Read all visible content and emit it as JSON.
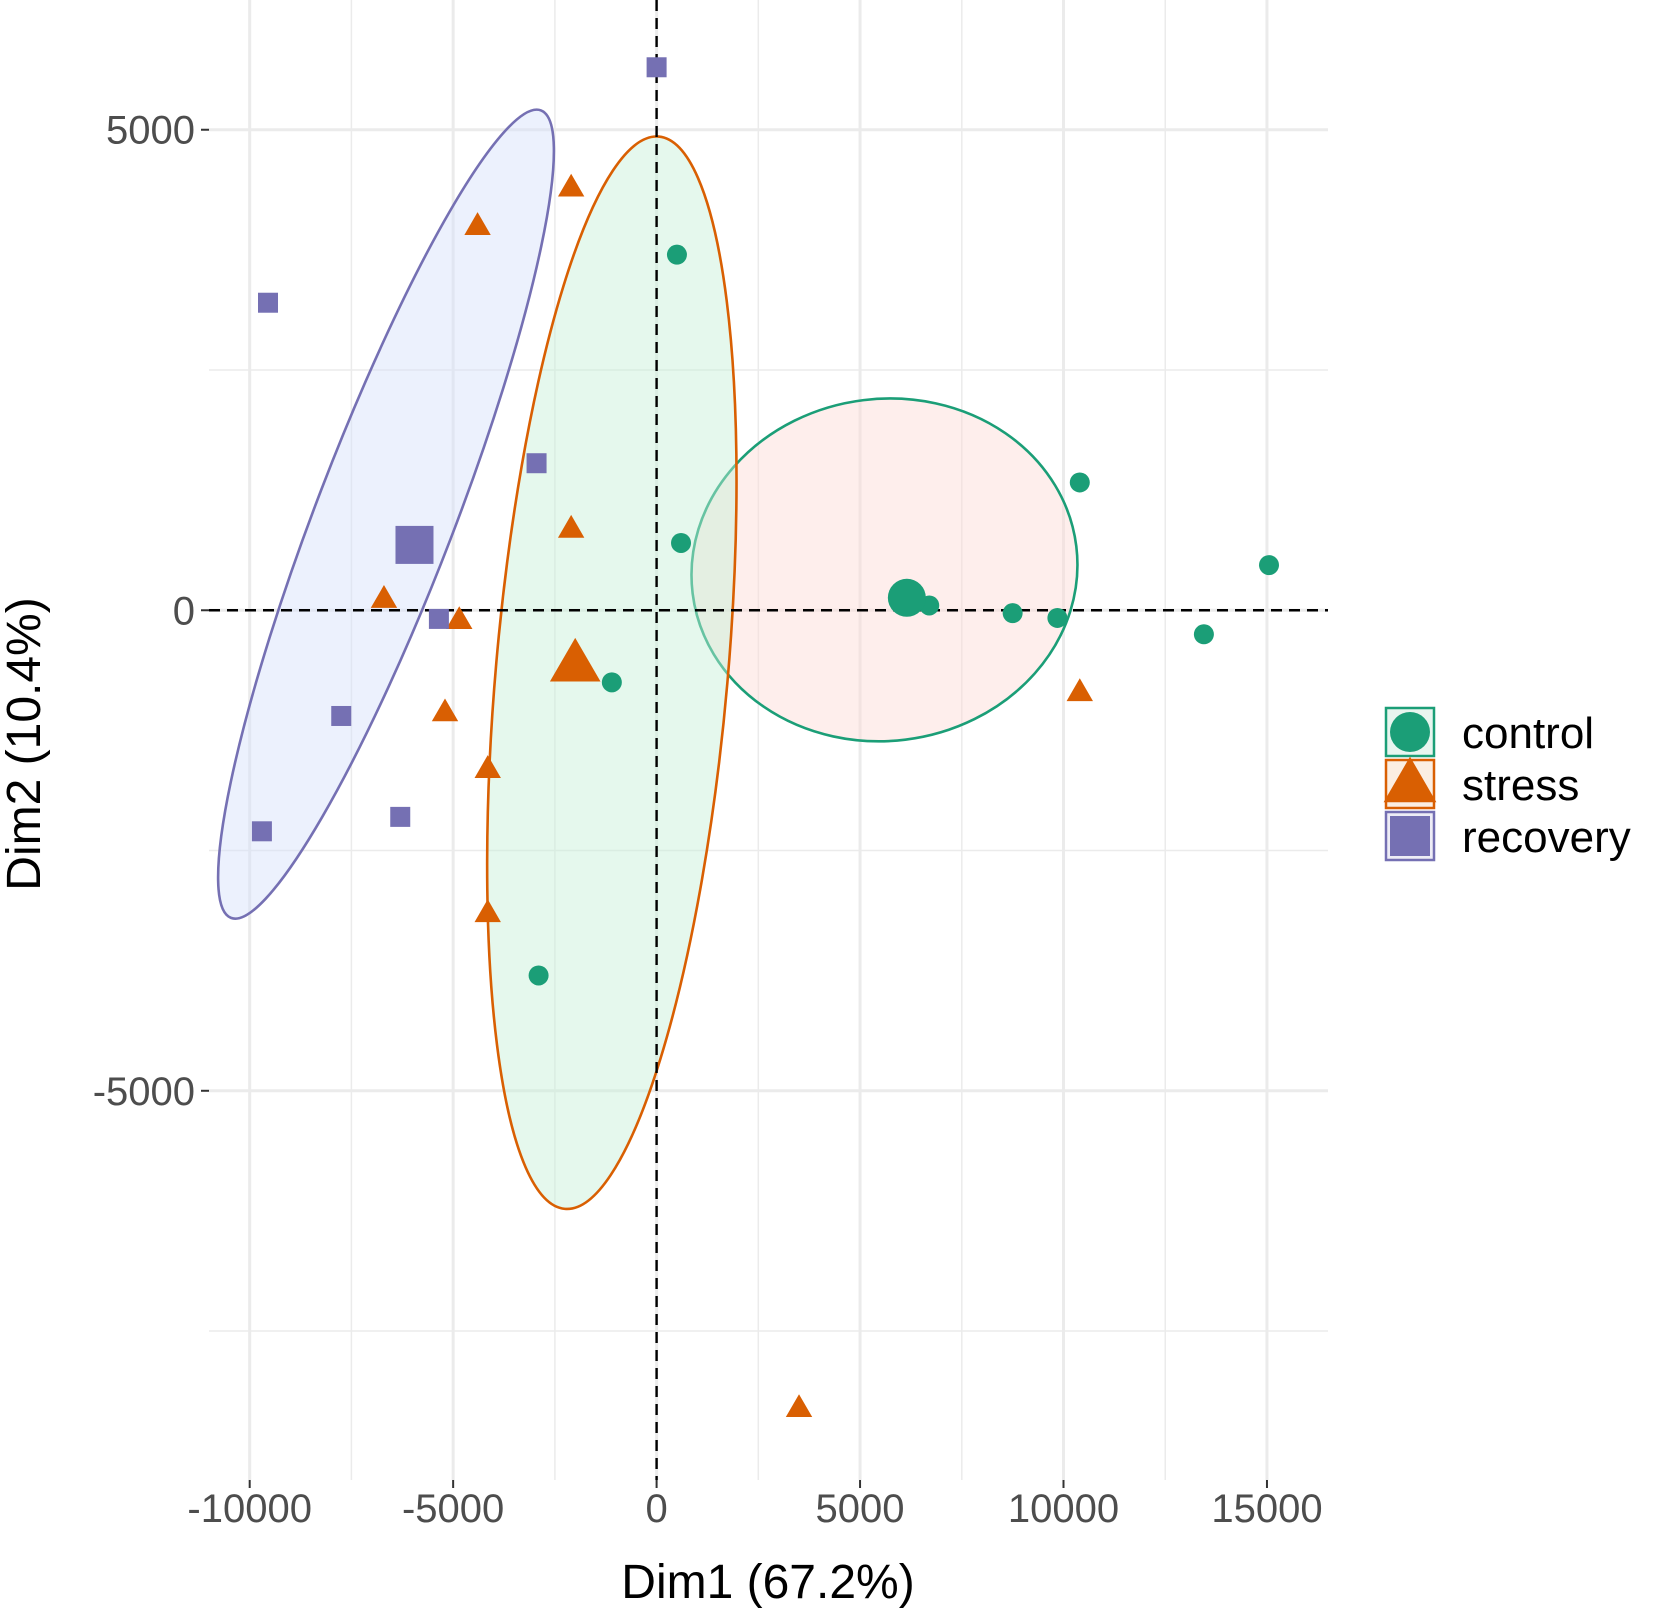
{
  "chart_data": {
    "type": "scatter",
    "title": "",
    "xlabel": "Dim1 (67.2%)",
    "ylabel": "Dim2 (10.4%)",
    "xlim": [
      -11000,
      16500
    ],
    "ylim": [
      -9050,
      6350
    ],
    "x_ticks": [
      -10000,
      -5000,
      0,
      5000,
      10000,
      15000
    ],
    "x_tick_labels": [
      "-10000",
      "-5000",
      "0",
      "5000",
      "10000",
      "15000"
    ],
    "y_ticks": [
      -5000,
      0,
      5000
    ],
    "y_tick_labels": [
      "-5000",
      "0",
      "5000"
    ],
    "grid": true,
    "reference_lines": {
      "x": 0,
      "y": 0,
      "style": "dashed"
    },
    "legend_position": "right",
    "series": [
      {
        "name": "control",
        "color": "#1b9e77",
        "shape": "circle",
        "points": [
          {
            "x": 500,
            "y": 3700
          },
          {
            "x": 600,
            "y": 700
          },
          {
            "x": -1100,
            "y": -750
          },
          {
            "x": -2900,
            "y": -3800
          },
          {
            "x": 6700,
            "y": 50
          },
          {
            "x": 8750,
            "y": -30
          },
          {
            "x": 9850,
            "y": -80
          },
          {
            "x": 10400,
            "y": 1330
          },
          {
            "x": 13450,
            "y": -250
          },
          {
            "x": 15050,
            "y": 470
          }
        ],
        "centroid": {
          "x": 6150,
          "y": 130
        },
        "ellipse": {
          "cx": 5600,
          "cy": 420,
          "rx": 4750,
          "ry": 1780,
          "angle_deg": -7
        }
      },
      {
        "name": "stress",
        "color": "#d95f02",
        "shape": "triangle",
        "points": [
          {
            "x": -4400,
            "y": 4000
          },
          {
            "x": -2100,
            "y": 4400
          },
          {
            "x": -2100,
            "y": 850
          },
          {
            "x": -6700,
            "y": 120
          },
          {
            "x": -4850,
            "y": -100
          },
          {
            "x": -5200,
            "y": -1060
          },
          {
            "x": -4150,
            "y": -1650
          },
          {
            "x": -4150,
            "y": -3150
          },
          {
            "x": 10400,
            "y": -850
          },
          {
            "x": 3500,
            "y": -8300
          }
        ],
        "centroid": {
          "x": -2000,
          "y": -560
        },
        "ellipse": {
          "cx": -1100,
          "cy": -650,
          "rx": 2850,
          "ry": 5600,
          "angle_deg": 5
        }
      },
      {
        "name": "recovery",
        "color": "#7570b3",
        "shape": "square",
        "points": [
          {
            "x": 0,
            "y": 5650
          },
          {
            "x": -9550,
            "y": 3200
          },
          {
            "x": -2950,
            "y": 1530
          },
          {
            "x": -5350,
            "y": -90
          },
          {
            "x": -7750,
            "y": -1100
          },
          {
            "x": -6300,
            "y": -2150
          },
          {
            "x": -9700,
            "y": -2300
          }
        ],
        "centroid": {
          "x": -5950,
          "y": 680
        },
        "ellipse": {
          "cx": -6650,
          "cy": 1000,
          "rx": 1700,
          "ry": 4500,
          "angle_deg": 21
        }
      }
    ]
  }
}
